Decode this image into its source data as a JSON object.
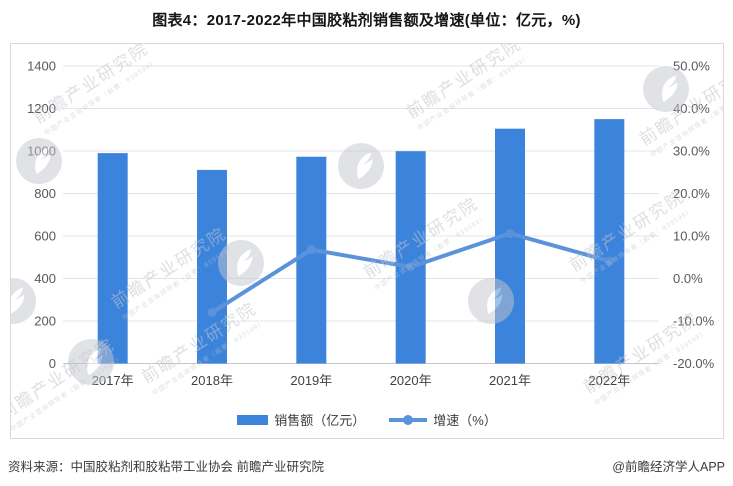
{
  "page": {
    "title": "图表4：2017-2022年中国胶粘剂销售额及增速(单位：亿元，%)"
  },
  "chart_data": {
    "type": "combo_bar_line",
    "title": "图表4：2017-2022年中国胶粘剂销售额及增速(单位：亿元，%)",
    "categories": [
      "2017年",
      "2018年",
      "2019年",
      "2020年",
      "2021年",
      "2022年"
    ],
    "series": [
      {
        "name": "销售额（亿元）",
        "type": "bar",
        "axis": "left",
        "color": "#3c83dc",
        "values": [
          990,
          911,
          973,
          999,
          1105,
          1150
        ]
      },
      {
        "name": "增速（%）",
        "type": "line",
        "axis": "right",
        "color": "#5b93db",
        "values": [
          null,
          -8.0,
          6.8,
          2.7,
          10.6,
          4.1
        ]
      }
    ],
    "left_axis": {
      "min": 0,
      "max": 1400,
      "step": 200,
      "tick_labels": [
        "0",
        "200",
        "400",
        "600",
        "800",
        "1000",
        "1200",
        "1400"
      ]
    },
    "right_axis": {
      "min": -20,
      "max": 50,
      "step": 10,
      "tick_labels": [
        "-20.0%",
        "-10.0%",
        "0.0%",
        "10.0%",
        "20.0%",
        "30.0%",
        "40.0%",
        "50.0%"
      ]
    },
    "grid": true,
    "legend_position": "bottom"
  },
  "watermark": {
    "text": "前瞻产业研究院",
    "subtext": "中国产业咨询领导者（股票：839599）"
  },
  "footer": {
    "source": "资料来源：中国胶粘剂和胶粘带工业协会 前瞻产业研究院",
    "credit": "@前瞻经济学人APP"
  },
  "colors": {
    "bar": "#3c83dc",
    "line": "#5b93db",
    "grid": "#e4e4e4",
    "baseline": "#c6c6c6",
    "axis_text": "#595959",
    "border": "#d9d9d9"
  }
}
